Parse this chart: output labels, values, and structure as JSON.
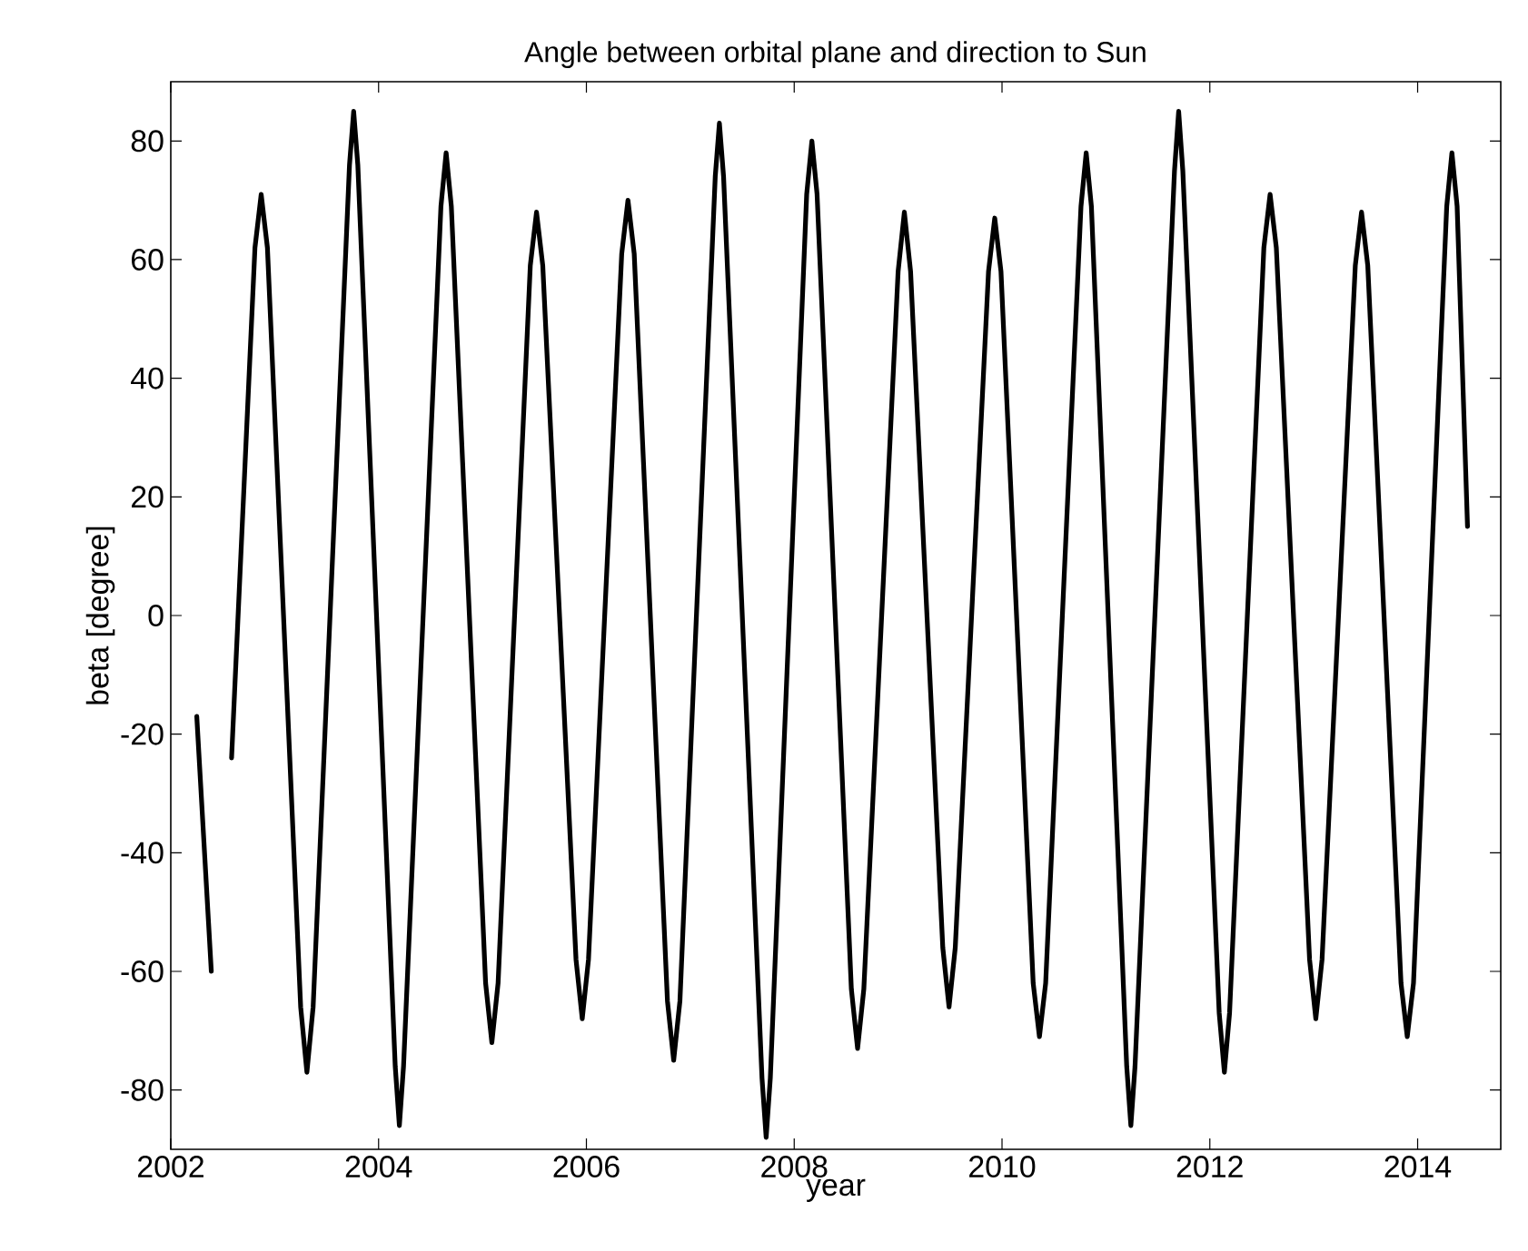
{
  "chart_data": {
    "type": "line",
    "title": "Angle between orbital plane and direction to Sun",
    "xlabel": "year",
    "ylabel": "beta [degree]",
    "xlim": [
      2002,
      2014.8
    ],
    "ylim": [
      -90,
      90
    ],
    "xticks": [
      2002,
      2004,
      2006,
      2008,
      2010,
      2012,
      2014
    ],
    "yticks": [
      -80,
      -60,
      -40,
      -20,
      0,
      20,
      40,
      60,
      80
    ],
    "series": [
      {
        "color": "#000000",
        "x": [
          2002.25,
          2002.39,
          2002.48,
          2002.585,
          2002.81,
          2002.87,
          2002.93,
          2003.25,
          2003.31,
          2003.37,
          2003.72,
          2003.76,
          2003.8,
          2004.16,
          2004.2,
          2004.24,
          2004.6,
          2004.65,
          2004.7,
          2005.03,
          2005.09,
          2005.15,
          2005.46,
          2005.52,
          2005.58,
          2005.9,
          2005.96,
          2006.02,
          2006.34,
          2006.4,
          2006.46,
          2006.78,
          2006.84,
          2006.9,
          2007.24,
          2007.28,
          2007.32,
          2007.69,
          2007.73,
          2007.77,
          2008.12,
          2008.17,
          2008.22,
          2008.55,
          2008.61,
          2008.67,
          2009.0,
          2009.06,
          2009.12,
          2009.43,
          2009.49,
          2009.55,
          2009.87,
          2009.93,
          2009.99,
          2010.3,
          2010.36,
          2010.42,
          2010.76,
          2010.81,
          2010.86,
          2011.2,
          2011.24,
          2011.28,
          2011.66,
          2011.7,
          2011.74,
          2012.09,
          2012.14,
          2012.19,
          2012.52,
          2012.58,
          2012.64,
          2012.96,
          2013.02,
          2013.08,
          2013.4,
          2013.46,
          2013.52,
          2013.84,
          2013.9,
          2013.96,
          2014.28,
          2014.33,
          2014.38,
          2014.48
        ],
        "values": [
          -17,
          -60,
          null,
          -24,
          62,
          71,
          62,
          -66,
          -77,
          -66,
          76,
          85,
          76,
          -76,
          -86,
          -76,
          69,
          78,
          69,
          -62,
          -72,
          -62,
          59,
          68,
          59,
          -58,
          -68,
          -58,
          61,
          70,
          61,
          -65,
          -75,
          -65,
          74,
          83,
          74,
          -78,
          -88,
          -78,
          71,
          80,
          71,
          -63,
          -73,
          -63,
          58,
          68,
          58,
          -56,
          -66,
          -56,
          58,
          67,
          58,
          -62,
          -71,
          -62,
          69,
          78,
          69,
          -76,
          -86,
          -76,
          75,
          85,
          75,
          -67,
          -77,
          -67,
          62,
          71,
          62,
          -58,
          -68,
          -58,
          59,
          68,
          59,
          -62,
          -71,
          -62,
          69,
          78,
          69,
          15
        ]
      }
    ]
  }
}
